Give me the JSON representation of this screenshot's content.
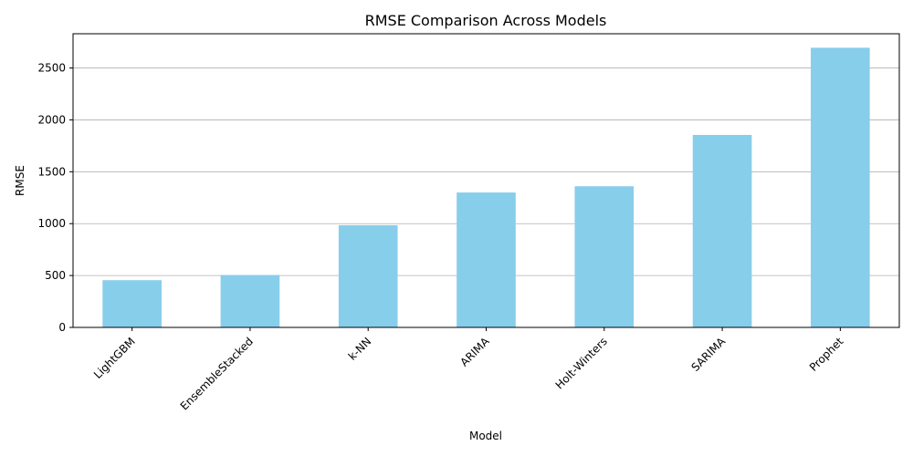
{
  "chart_data": {
    "type": "bar",
    "title": "RMSE Comparison Across Models",
    "xlabel": "Model",
    "ylabel": "RMSE",
    "categories": [
      "LightGBM",
      "EnsembleStacked",
      "k-NN",
      "ARIMA",
      "Holt-Winters",
      "SARIMA",
      "Prophet"
    ],
    "values": [
      455,
      505,
      985,
      1300,
      1360,
      1855,
      2695
    ],
    "ylim": [
      0,
      2830
    ],
    "yticks": [
      0,
      500,
      1000,
      1500,
      2000,
      2500
    ],
    "ytick_labels": [
      "0",
      "500",
      "1000",
      "1500",
      "2000",
      "2500"
    ],
    "grid": "horizontal",
    "colors": {
      "bar": "#87ceeb",
      "grid": "#b0b0b0",
      "axis": "#000000"
    }
  }
}
